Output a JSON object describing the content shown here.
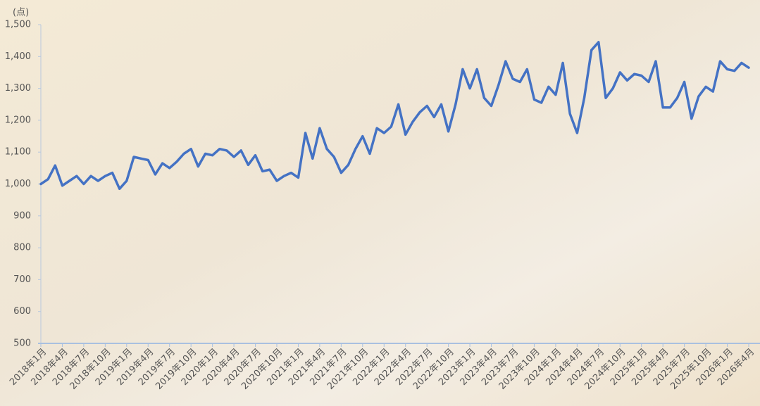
{
  "chart_data": {
    "type": "line",
    "y_label": "(点)",
    "categories": [
      "2018年1月",
      null,
      null,
      "2018年4月",
      null,
      null,
      "2018年7月",
      null,
      null,
      "2018年10月",
      null,
      null,
      "2019年1月",
      null,
      null,
      "2019年4月",
      null,
      null,
      "2019年7月",
      null,
      null,
      "2019年10月",
      null,
      null,
      "2020年1月",
      null,
      null,
      "2020年4月",
      null,
      null,
      "2020年7月",
      null,
      null,
      "2020年10月",
      null,
      null,
      "2021年1月",
      null,
      null,
      "2021年4月",
      null,
      null,
      "2021年7月",
      null,
      null,
      "2021年10月",
      null,
      null,
      "2022年1月",
      null,
      null,
      "2022年4月",
      null,
      null,
      "2022年7月",
      null,
      null,
      "2022年10月",
      null,
      null,
      "2023年1月",
      null,
      null,
      "2023年4月",
      null,
      null,
      "2023年7月",
      null,
      null,
      "2023年10月",
      null,
      null,
      "2024年1月",
      null,
      null,
      "2024年4月",
      null,
      null,
      "2024年7月",
      null,
      null,
      "2024年10月",
      null,
      null,
      "2025年1月",
      null,
      null,
      "2025年4月",
      null,
      null,
      "2025年7月",
      null,
      null,
      "2025年10月",
      null,
      null,
      "2026年1月",
      null,
      null,
      "2026年4月"
    ],
    "values": [
      1000,
      1015,
      1058,
      995,
      1010,
      1025,
      1000,
      1025,
      1010,
      1025,
      1035,
      985,
      1010,
      1085,
      1080,
      1075,
      1030,
      1065,
      1050,
      1070,
      1095,
      1110,
      1055,
      1095,
      1090,
      1110,
      1105,
      1085,
      1105,
      1060,
      1090,
      1040,
      1045,
      1010,
      1025,
      1035,
      1020,
      1160,
      1080,
      1175,
      1110,
      1085,
      1035,
      1060,
      1110,
      1150,
      1095,
      1175,
      1160,
      1180,
      1250,
      1155,
      1195,
      1225,
      1245,
      1210,
      1250,
      1165,
      1250,
      1360,
      1300,
      1360,
      1270,
      1245,
      1310,
      1385,
      1330,
      1320,
      1360,
      1265,
      1255,
      1305,
      1280,
      1380,
      1220,
      1160,
      1270,
      1420,
      1445,
      1270,
      1300,
      1350,
      1325,
      1345,
      1340,
      1320,
      1385,
      1240,
      1240,
      1270,
      1320,
      1205,
      1275,
      1305,
      1290,
      1385,
      1360,
      1355,
      1380,
      1365
    ],
    "color": "#4472c4",
    "ylim": [
      500,
      1500
    ],
    "yticks": [
      500,
      600,
      700,
      800,
      900,
      {
        "value": 1000,
        "label": "1,000"
      },
      {
        "value": 1100,
        "label": "1,100"
      },
      {
        "value": 1200,
        "label": "1,200"
      },
      {
        "value": 1300,
        "label": "1,300"
      },
      {
        "value": 1400,
        "label": "1,400"
      },
      {
        "value": 1500,
        "label": "1,500"
      }
    ]
  }
}
